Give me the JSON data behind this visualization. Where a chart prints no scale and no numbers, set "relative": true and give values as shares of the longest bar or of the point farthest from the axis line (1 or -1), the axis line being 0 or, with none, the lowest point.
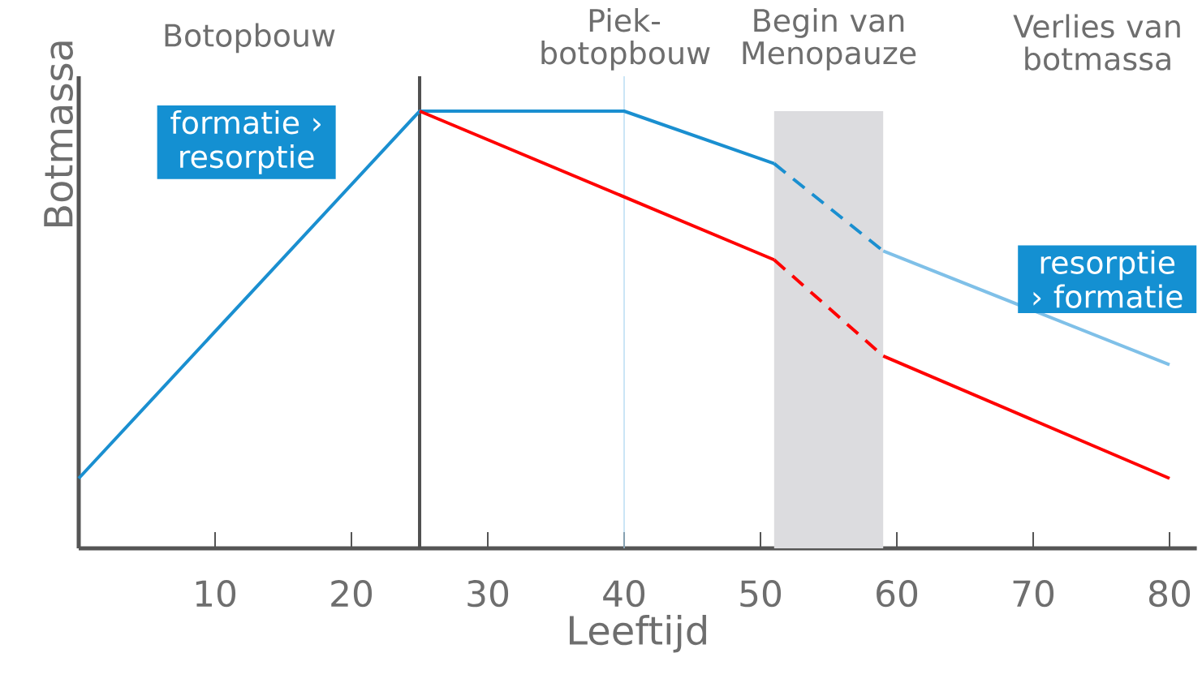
{
  "chart_data": {
    "type": "line",
    "xlabel": "Leeftijd",
    "ylabel": "Botmassa",
    "relative": true,
    "xlim": [
      0,
      82
    ],
    "xticks": [
      10,
      20,
      30,
      40,
      50,
      60,
      70,
      80
    ],
    "series": [
      {
        "color": "#1a8fd0",
        "x": [
          0,
          25,
          40,
          51
        ],
        "values": [
          0.16,
          1,
          1,
          0.88
        ],
        "line_style": "solid"
      },
      {
        "color": "#1a8fd0",
        "x": [
          51,
          59
        ],
        "values": [
          0.88,
          0.68
        ],
        "line_style": "dashed"
      },
      {
        "color": "#7fc0e8",
        "x": [
          59,
          80
        ],
        "values": [
          0.68,
          0.42
        ],
        "line_style": "solid"
      },
      {
        "color": "#ff0000",
        "x": [
          25,
          51
        ],
        "values": [
          1,
          0.66
        ],
        "line_style": "solid"
      },
      {
        "color": "#ff0000",
        "x": [
          51,
          59
        ],
        "values": [
          0.66,
          0.44
        ],
        "line_style": "dashed"
      },
      {
        "color": "#ff0000",
        "x": [
          59,
          80
        ],
        "values": [
          0.44,
          0.16
        ],
        "line_style": "solid"
      }
    ],
    "ref_lines": [
      {
        "axis": "x",
        "value": 25,
        "color": "#505050"
      },
      {
        "axis": "x",
        "value": 40,
        "color": "#a9d5f0",
        "label": "Piek-botopbouw"
      }
    ],
    "bands": [
      {
        "axis": "x",
        "from": 51,
        "to": 59,
        "color": "#dcdcdf",
        "label": "Begin van Menopauze"
      }
    ],
    "annotations": [
      "Botopbouw",
      "formatie › resorptie",
      "resorptie › formatie",
      "Verlies van botmassa"
    ]
  }
}
